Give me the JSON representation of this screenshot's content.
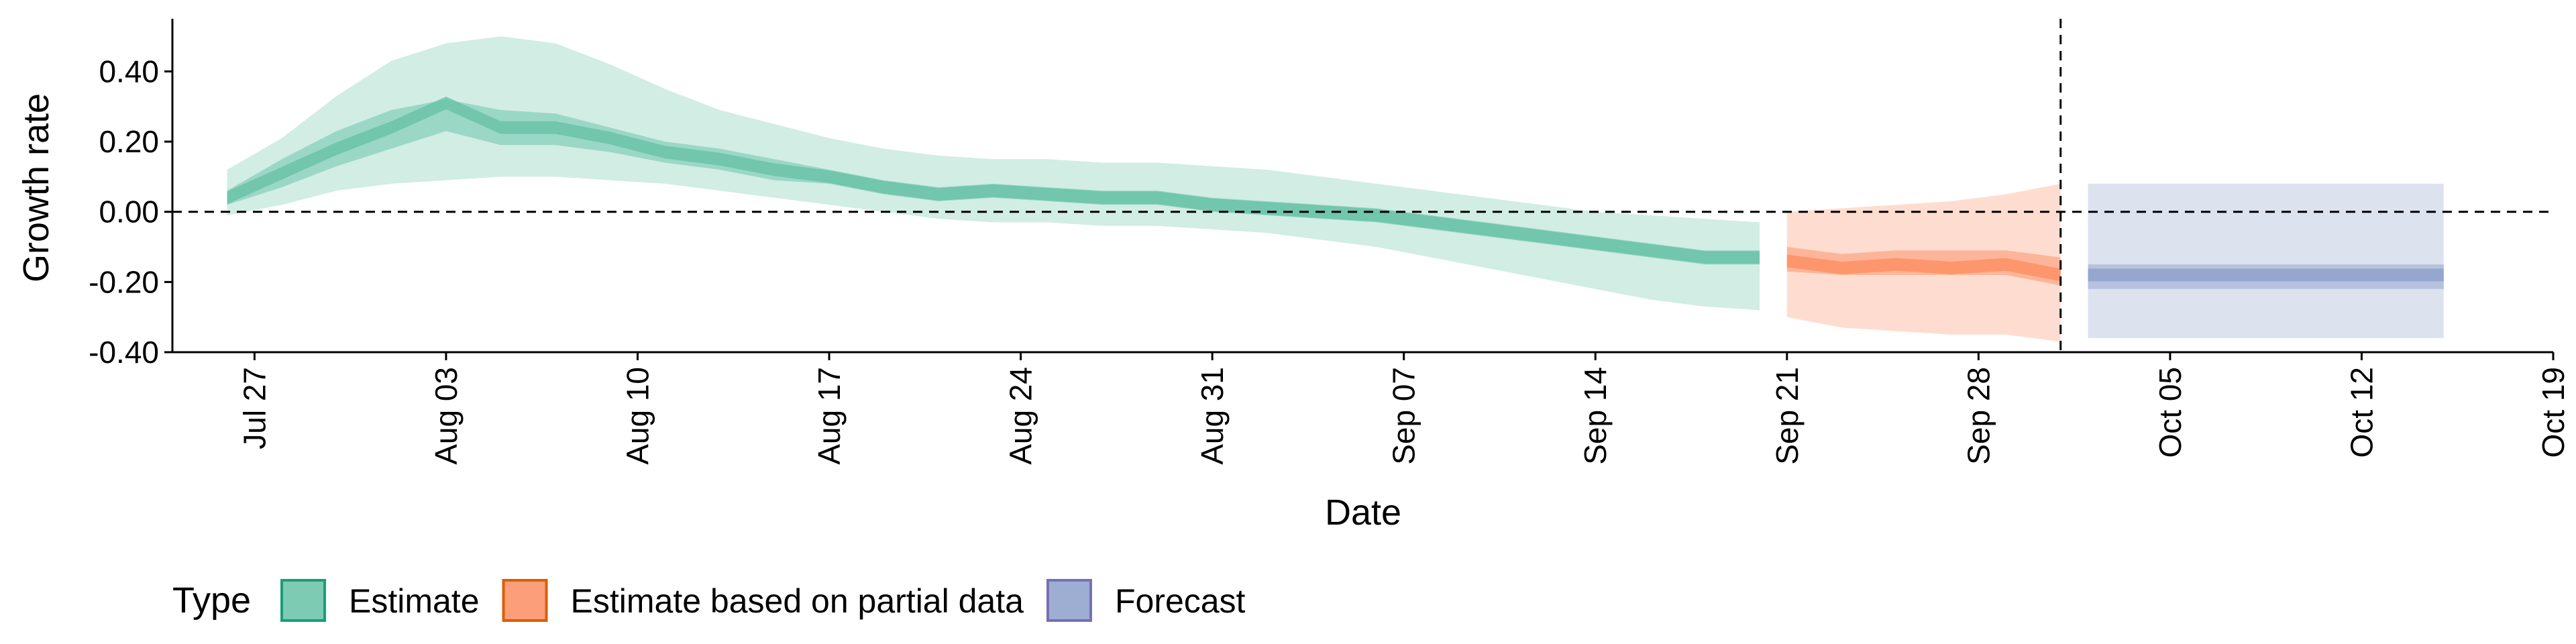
{
  "chart_data": {
    "type": "area",
    "xlabel": "Date",
    "ylabel": "Growth rate",
    "x_start": "2020-07-24",
    "x_end": "2020-10-19",
    "ylim": [
      -0.4,
      0.55
    ],
    "y_ticks": [
      {
        "value": 0.4,
        "label": "0.40"
      },
      {
        "value": 0.2,
        "label": "0.20"
      },
      {
        "value": 0.0,
        "label": "0.00"
      },
      {
        "value": -0.2,
        "label": "-0.20"
      },
      {
        "value": -0.4,
        "label": "-0.40"
      }
    ],
    "x_ticks": [
      {
        "date": "2020-07-27",
        "label": "Jul 27"
      },
      {
        "date": "2020-08-03",
        "label": "Aug 03"
      },
      {
        "date": "2020-08-10",
        "label": "Aug 10"
      },
      {
        "date": "2020-08-17",
        "label": "Aug 17"
      },
      {
        "date": "2020-08-24",
        "label": "Aug 24"
      },
      {
        "date": "2020-08-31",
        "label": "Aug 31"
      },
      {
        "date": "2020-09-07",
        "label": "Sep 07"
      },
      {
        "date": "2020-09-14",
        "label": "Sep 14"
      },
      {
        "date": "2020-09-21",
        "label": "Sep 21"
      },
      {
        "date": "2020-09-28",
        "label": "Sep 28"
      },
      {
        "date": "2020-10-05",
        "label": "Oct 05"
      },
      {
        "date": "2020-10-12",
        "label": "Oct 12"
      },
      {
        "date": "2020-10-19",
        "label": "Oct 19"
      }
    ],
    "reference_lines": {
      "horizontal_y": 0.0,
      "vertical_date": "2020-10-01"
    },
    "grid": false,
    "legend": {
      "title": "Type",
      "position": "bottom"
    },
    "series": [
      {
        "name": "Estimate",
        "color": "#1B9E77",
        "fill": "#66C2A5",
        "x": [
          "2020-07-26",
          "2020-07-28",
          "2020-07-30",
          "2020-08-01",
          "2020-08-03",
          "2020-08-05",
          "2020-08-07",
          "2020-08-09",
          "2020-08-11",
          "2020-08-13",
          "2020-08-15",
          "2020-08-17",
          "2020-08-19",
          "2020-08-21",
          "2020-08-23",
          "2020-08-25",
          "2020-08-27",
          "2020-08-29",
          "2020-08-31",
          "2020-09-02",
          "2020-09-04",
          "2020-09-06",
          "2020-09-08",
          "2020-09-10",
          "2020-09-12",
          "2020-09-14",
          "2020-09-16",
          "2020-09-18",
          "2020-09-20"
        ],
        "median": [
          0.04,
          0.11,
          0.18,
          0.24,
          0.31,
          0.24,
          0.24,
          0.21,
          0.17,
          0.15,
          0.12,
          0.1,
          0.07,
          0.05,
          0.06,
          0.05,
          0.04,
          0.04,
          0.02,
          0.01,
          0.0,
          -0.01,
          -0.03,
          -0.05,
          -0.07,
          -0.09,
          -0.11,
          -0.13,
          -0.13
        ],
        "lower_50": [
          0.02,
          0.07,
          0.13,
          0.18,
          0.23,
          0.19,
          0.19,
          0.17,
          0.14,
          0.12,
          0.09,
          0.08,
          0.05,
          0.03,
          0.04,
          0.03,
          0.02,
          0.02,
          0.0,
          -0.01,
          -0.02,
          -0.03,
          -0.05,
          -0.07,
          -0.09,
          -0.11,
          -0.13,
          -0.15,
          -0.15
        ],
        "upper_50": [
          0.06,
          0.15,
          0.23,
          0.29,
          0.32,
          0.29,
          0.28,
          0.24,
          0.2,
          0.18,
          0.15,
          0.12,
          0.09,
          0.07,
          0.08,
          0.07,
          0.06,
          0.06,
          0.04,
          0.03,
          0.02,
          0.01,
          -0.01,
          -0.03,
          -0.05,
          -0.07,
          -0.09,
          -0.11,
          -0.11
        ],
        "lower_90": [
          -0.01,
          0.02,
          0.06,
          0.08,
          0.09,
          0.1,
          0.1,
          0.09,
          0.08,
          0.06,
          0.04,
          0.02,
          0.0,
          -0.02,
          -0.03,
          -0.03,
          -0.04,
          -0.04,
          -0.05,
          -0.06,
          -0.08,
          -0.1,
          -0.13,
          -0.16,
          -0.19,
          -0.22,
          -0.25,
          -0.27,
          -0.28
        ],
        "upper_90": [
          0.12,
          0.21,
          0.33,
          0.43,
          0.48,
          0.5,
          0.48,
          0.42,
          0.35,
          0.29,
          0.25,
          0.21,
          0.18,
          0.16,
          0.15,
          0.15,
          0.14,
          0.14,
          0.13,
          0.12,
          0.1,
          0.08,
          0.06,
          0.04,
          0.02,
          0.0,
          -0.01,
          -0.02,
          -0.03
        ]
      },
      {
        "name": "Estimate based on partial data",
        "color": "#D95F02",
        "fill": "#FC8D62",
        "x": [
          "2020-09-21",
          "2020-09-23",
          "2020-09-25",
          "2020-09-27",
          "2020-09-29",
          "2020-10-01"
        ],
        "median": [
          -0.14,
          -0.16,
          -0.15,
          -0.16,
          -0.15,
          -0.18
        ],
        "lower_50": [
          -0.17,
          -0.18,
          -0.18,
          -0.18,
          -0.18,
          -0.21
        ],
        "upper_50": [
          -0.1,
          -0.12,
          -0.11,
          -0.11,
          -0.11,
          -0.13
        ],
        "lower_90": [
          -0.3,
          -0.33,
          -0.34,
          -0.35,
          -0.35,
          -0.37
        ],
        "upper_90": [
          0.0,
          0.01,
          0.02,
          0.03,
          0.05,
          0.08
        ]
      },
      {
        "name": "Forecast",
        "color": "#7570B3",
        "fill": "#8DA0CB",
        "x": [
          "2020-10-02",
          "2020-10-15"
        ],
        "median": [
          -0.18,
          -0.18
        ],
        "lower_50": [
          -0.22,
          -0.22
        ],
        "upper_50": [
          -0.15,
          -0.15
        ],
        "lower_90": [
          -0.36,
          -0.36
        ],
        "upper_90": [
          0.08,
          0.08
        ]
      }
    ]
  }
}
